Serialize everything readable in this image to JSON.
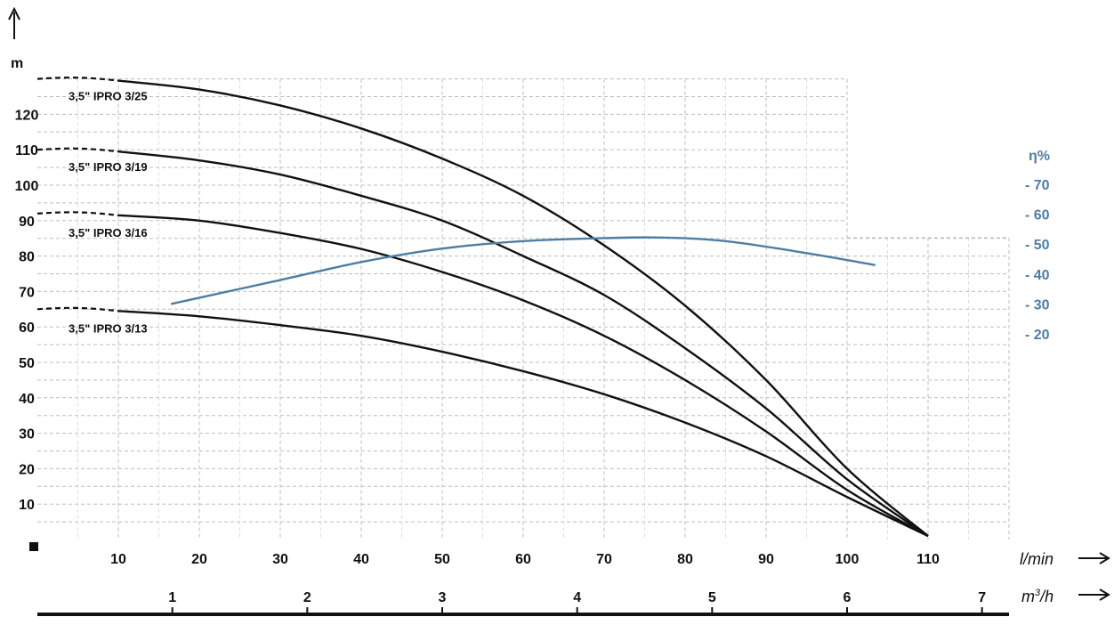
{
  "chart_data": {
    "type": "line",
    "y_axis": {
      "label": "m",
      "ticks": [
        10,
        20,
        30,
        40,
        50,
        60,
        70,
        80,
        90,
        100,
        110,
        120
      ],
      "ylim": [
        0,
        130
      ]
    },
    "x_axis_lmin": {
      "label": "l/min",
      "ticks": [
        10,
        20,
        30,
        40,
        50,
        60,
        70,
        80,
        90,
        100,
        110
      ],
      "xlim": [
        0,
        120
      ]
    },
    "x_axis_m3h": {
      "label_base": "m",
      "label_sup": "3",
      "label_tail": "/h",
      "ticks": [
        1,
        2,
        3,
        4,
        5,
        6,
        7
      ]
    },
    "eta_axis": {
      "label": "η%",
      "ticks": [
        "- 70",
        "- 60",
        "- 50",
        "- 40",
        "- 30",
        "- 20"
      ],
      "values": [
        70,
        60,
        50,
        40,
        30,
        20
      ]
    },
    "grid": true,
    "series": [
      {
        "name": "3,5\" IPRO 3/25",
        "shutoff_head": 130,
        "dashed_until": 10,
        "x": [
          10,
          20,
          30,
          40,
          50,
          60,
          70,
          80,
          90,
          100,
          110
        ],
        "y": [
          129.5,
          127,
          122.5,
          116,
          107.5,
          97,
          83,
          66,
          45,
          20,
          1
        ]
      },
      {
        "name": "3,5\" IPRO 3/19",
        "shutoff_head": 110,
        "dashed_until": 10,
        "x": [
          10,
          20,
          30,
          40,
          50,
          60,
          70,
          80,
          90,
          100,
          110
        ],
        "y": [
          109.5,
          107,
          103,
          97,
          90,
          80,
          69,
          54,
          37,
          17,
          1
        ]
      },
      {
        "name": "3,5\" IPRO 3/16",
        "shutoff_head": 92,
        "dashed_until": 10,
        "x": [
          10,
          20,
          30,
          40,
          50,
          60,
          70,
          80,
          90,
          100,
          110
        ],
        "y": [
          91.5,
          90,
          86.5,
          82,
          75.5,
          67.5,
          57.5,
          45,
          30.5,
          14,
          1
        ]
      },
      {
        "name": "3,5\" IPRO 3/13",
        "shutoff_head": 65,
        "dashed_until": 10,
        "x": [
          10,
          20,
          30,
          40,
          50,
          60,
          70,
          80,
          90,
          100,
          110
        ],
        "y": [
          64.5,
          63,
          60.5,
          57.5,
          53,
          47.5,
          41,
          33,
          23.5,
          12,
          1
        ]
      }
    ],
    "efficiency": {
      "name": "η%",
      "color": "#4e7ea3",
      "x": [
        16.5,
        30,
        40,
        50,
        60,
        70,
        77,
        85,
        95,
        103.5
      ],
      "eta": [
        30,
        38,
        44,
        48.5,
        51,
        52,
        52.2,
        51,
        47,
        43
      ]
    }
  }
}
